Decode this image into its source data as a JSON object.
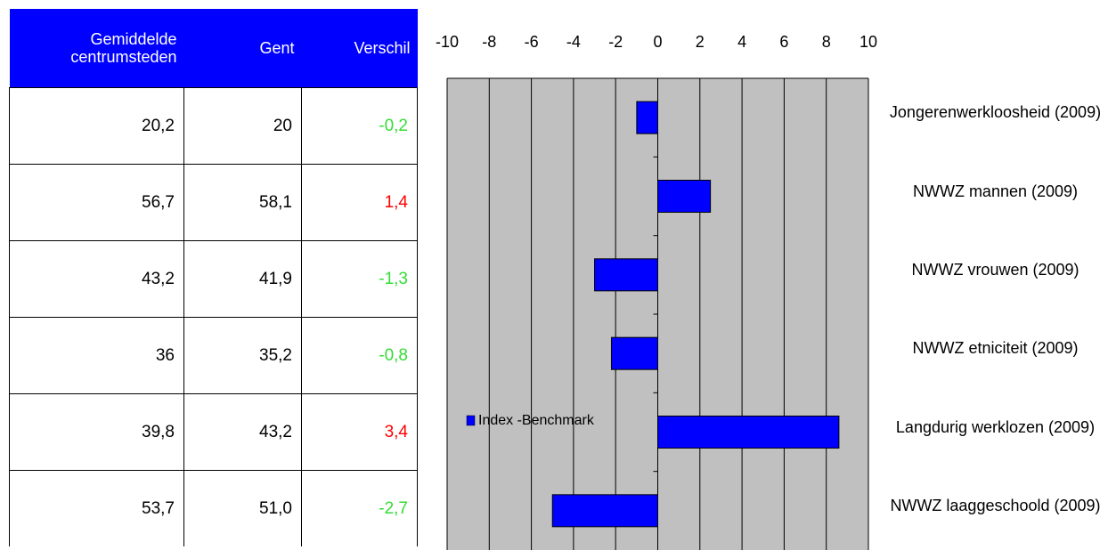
{
  "table": {
    "header": [
      "Gemiddelde centrumsteden",
      "Gent",
      "Verschil"
    ],
    "rows": [
      [
        "20,2",
        "20",
        "-0,2"
      ],
      [
        "56,7",
        "58,1",
        "1,4"
      ],
      [
        "43,2",
        "41,9",
        "-1,3"
      ],
      [
        "36",
        "35,2",
        "-0,8"
      ],
      [
        "39,8",
        "43,2",
        "3,4"
      ],
      [
        "53,7",
        "51,0",
        "-2,7"
      ]
    ],
    "header_color": "#0000ff",
    "diff_colors": [
      "#33dd33",
      "#ff0000",
      "#33dd33",
      "#33dd33",
      "#ff0000",
      "#33dd33"
    ]
  },
  "chart_data": {
    "type": "hbar",
    "categories": [
      "Jongerenwerkloosheid (2009)",
      "NWWZ mannen (2009)",
      "NWWZ vrouwen (2009)",
      "NWWZ etniciteit (2009)",
      "Langdurig werklozen (2009)",
      "NWWZ laaggeschoold (2009)"
    ],
    "series": [
      {
        "name": "Index -Benchmark",
        "color": "#0000ff",
        "values": [
          -1,
          2.5,
          -3,
          -2.2,
          8.6,
          -5
        ]
      }
    ],
    "xlim": [
      -10,
      10
    ],
    "xticks": [
      -10,
      -8,
      -6,
      -4,
      -2,
      0,
      2,
      4,
      6,
      8,
      10
    ],
    "grid": true,
    "legend": "inside-left",
    "plot_color": "#c0c0c0"
  }
}
